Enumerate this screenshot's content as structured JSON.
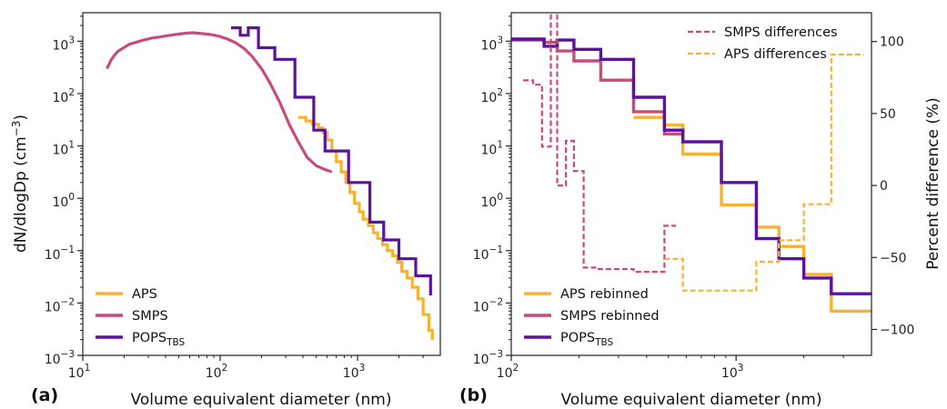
{
  "colors": {
    "aps": "#f7b232",
    "smps": "#c94a7c",
    "pops": "#5b12a0",
    "frame": "#222222"
  },
  "chart_data": [
    {
      "panel_label": "(a)",
      "type": "line",
      "x_scale": "log",
      "y_scale": "log",
      "xlabel": "Volume equivalent diameter (nm)",
      "ylabel_main": "dN/dlogDp (cm",
      "ylabel_sup": "−3",
      "ylabel_close": ")",
      "xlim": [
        10,
        4000
      ],
      "ylim": [
        0.001,
        3500
      ],
      "x_ticks": [
        {
          "value": 10,
          "base": "10",
          "exp": "1"
        },
        {
          "value": 100,
          "base": "10",
          "exp": "2"
        },
        {
          "value": 1000,
          "base": "10",
          "exp": "3"
        }
      ],
      "y_ticks": [
        {
          "value": 0.001,
          "base": "10",
          "exp": "−3"
        },
        {
          "value": 0.01,
          "base": "10",
          "exp": "−2"
        },
        {
          "value": 0.1,
          "base": "10",
          "exp": "−1"
        },
        {
          "value": 1,
          "base": "10",
          "exp": "0"
        },
        {
          "value": 10,
          "base": "10",
          "exp": "1"
        },
        {
          "value": 100,
          "base": "10",
          "exp": "2"
        },
        {
          "value": 1000,
          "base": "10",
          "exp": "3"
        }
      ],
      "legend_position": "lower-left",
      "legend": [
        {
          "label": "APS",
          "sub": "",
          "color_key": "aps",
          "dashed": false
        },
        {
          "label": "SMPS",
          "sub": "",
          "color_key": "smps",
          "dashed": false
        },
        {
          "label": "POPS",
          "sub": "TBS",
          "color_key": "pops",
          "dashed": false
        }
      ],
      "series": [
        {
          "name": "SMPS",
          "color_key": "smps",
          "step": false,
          "width": 3.2,
          "x": [
            15,
            16,
            17,
            18,
            20,
            22,
            25,
            28,
            32,
            36,
            40,
            45,
            50,
            56,
            63,
            70,
            80,
            90,
            100,
            115,
            130,
            150,
            170,
            200,
            230,
            270,
            320,
            370,
            430,
            500,
            570,
            650
          ],
          "y": [
            300,
            430,
            540,
            640,
            760,
            880,
            970,
            1060,
            1150,
            1200,
            1260,
            1320,
            1370,
            1420,
            1450,
            1420,
            1370,
            1310,
            1230,
            1080,
            930,
            720,
            520,
            300,
            160,
            70,
            25,
            12,
            6,
            4.2,
            3.6,
            3.2
          ]
        },
        {
          "name": "APS",
          "color_key": "aps",
          "step": true,
          "width": 3.2,
          "x": [
            370,
            420,
            470,
            520,
            560,
            600,
            650,
            700,
            760,
            820,
            880,
            950,
            1030,
            1100,
            1200,
            1300,
            1400,
            1520,
            1650,
            1800,
            1950,
            2100,
            2300,
            2500,
            2750,
            3000,
            3300,
            3500
          ],
          "y": [
            35,
            30,
            26,
            22,
            18,
            13,
            8,
            5,
            3.2,
            2,
            1.3,
            0.8,
            0.55,
            0.4,
            0.3,
            0.22,
            0.17,
            0.13,
            0.1,
            0.08,
            0.06,
            0.04,
            0.03,
            0.02,
            0.012,
            0.006,
            0.003,
            0.002
          ]
        },
        {
          "name": "POPS",
          "color_key": "pops",
          "step": true,
          "width": 3.2,
          "x": [
            120,
            140,
            160,
            190,
            250,
            350,
            480,
            580,
            860,
            1230,
            1550,
            2000,
            2650,
            3400
          ],
          "y": [
            1800,
            1300,
            1800,
            750,
            450,
            85,
            20,
            8,
            2,
            0.35,
            0.16,
            0.07,
            0.033,
            0.014
          ]
        }
      ]
    },
    {
      "panel_label": "(b)",
      "type": "line",
      "x_scale": "log",
      "y_scale": "log",
      "xlabel": "Volume equivalent diameter (nm)",
      "xlim": [
        100,
        4000
      ],
      "ylim": [
        0.001,
        3500
      ],
      "x_ticks": [
        {
          "value": 100,
          "base": "10",
          "exp": "2"
        },
        {
          "value": 1000,
          "base": "10",
          "exp": "3"
        }
      ],
      "y_ticks": [
        {
          "value": 0.001,
          "base": "10",
          "exp": "−3"
        },
        {
          "value": 0.01,
          "base": "10",
          "exp": "−2"
        },
        {
          "value": 0.1,
          "base": "10",
          "exp": "−1"
        },
        {
          "value": 1,
          "base": "10",
          "exp": "0"
        },
        {
          "value": 10,
          "base": "10",
          "exp": "1"
        },
        {
          "value": 100,
          "base": "10",
          "exp": "2"
        },
        {
          "value": 1000,
          "base": "10",
          "exp": "3"
        }
      ],
      "y2_label": "Percent difference (%)",
      "y2_lim": [
        -118,
        120
      ],
      "y2_ticks": [
        {
          "value": 100,
          "label": "100"
        },
        {
          "value": 50,
          "label": "50"
        },
        {
          "value": 0,
          "label": "0"
        },
        {
          "value": -50,
          "label": "−50"
        },
        {
          "value": -100,
          "label": "−100"
        }
      ],
      "legend_upper_position": "upper-right",
      "legend_upper": [
        {
          "label": "SMPS differences",
          "sub": "",
          "color_key": "smps",
          "dashed": true
        },
        {
          "label": "APS differences",
          "sub": "",
          "color_key": "aps",
          "dashed": true
        }
      ],
      "legend_lower_position": "lower-left",
      "legend_lower": [
        {
          "label": "APS rebinned",
          "sub": "",
          "color_key": "aps",
          "dashed": false
        },
        {
          "label": "SMPS rebinned",
          "sub": "",
          "color_key": "smps",
          "dashed": false
        },
        {
          "label": "POPS",
          "sub": "TBS",
          "color_key": "pops",
          "dashed": false
        }
      ],
      "series": [
        {
          "name": "APS rebinned",
          "color_key": "aps",
          "step": true,
          "width": 3.4,
          "axis": "left",
          "x": [
            350,
            480,
            580,
            860,
            1230,
            1550,
            2000,
            2650,
            4000
          ],
          "y": [
            35,
            25,
            7,
            0.75,
            0.28,
            0.12,
            0.035,
            0.007,
            0.007
          ]
        },
        {
          "name": "SMPS rebinned",
          "color_key": "smps",
          "step": true,
          "width": 3.4,
          "axis": "left",
          "x": [
            100,
            140,
            160,
            190,
            250,
            350,
            480,
            580
          ],
          "y": [
            1050,
            950,
            650,
            420,
            180,
            45,
            17,
            17
          ]
        },
        {
          "name": "POPS",
          "color_key": "pops",
          "step": true,
          "width": 3.4,
          "axis": "left",
          "x": [
            100,
            140,
            160,
            190,
            250,
            350,
            480,
            580,
            860,
            1230,
            1550,
            2000,
            2650,
            4000
          ],
          "y": [
            1100,
            800,
            1050,
            700,
            450,
            85,
            20,
            12,
            2,
            0.17,
            0.07,
            0.03,
            0.015,
            0.015
          ]
        },
        {
          "name": "SMPS differences",
          "color_key": "smps",
          "step": true,
          "width": 2.2,
          "axis": "right",
          "dashed": true,
          "x": [
            113,
            125,
            137,
            150,
            160,
            175,
            190,
            210,
            240,
            350,
            480,
            540
          ],
          "y": [
            73,
            70,
            27,
            220,
            0,
            31,
            10,
            -57,
            -58,
            -60,
            -28,
            -28
          ]
        },
        {
          "name": "APS differences",
          "color_key": "aps",
          "step": true,
          "width": 2.2,
          "axis": "right",
          "dashed": true,
          "x": [
            480,
            580,
            860,
            1230,
            1550,
            2000,
            2650,
            3200,
            3700
          ],
          "y": [
            -51,
            -73,
            -73,
            -53,
            -38,
            -13,
            91,
            91,
            91
          ]
        }
      ]
    }
  ]
}
